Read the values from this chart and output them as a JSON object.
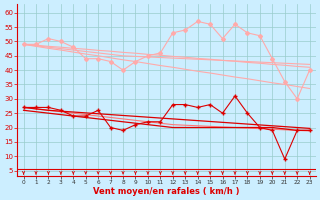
{
  "x": [
    0,
    1,
    2,
    3,
    4,
    5,
    6,
    7,
    8,
    9,
    10,
    11,
    12,
    13,
    14,
    15,
    16,
    17,
    18,
    19,
    20,
    21,
    22,
    23
  ],
  "rafales_line": [
    49,
    49,
    51,
    50,
    48,
    44,
    44,
    43,
    40,
    43,
    45,
    46,
    53,
    54,
    57,
    56,
    51,
    56,
    53,
    52,
    44,
    36,
    30,
    40
  ],
  "rafales_trend1": [
    49,
    48.3,
    47.6,
    47.0,
    46.3,
    45.6,
    45.0,
    44.3,
    43.6,
    43.0,
    42.3,
    41.6,
    41.0,
    40.3,
    39.6,
    39.0,
    38.3,
    37.6,
    37.0,
    36.3,
    35.6,
    35.0,
    34.3,
    33.6
  ],
  "rafales_trend2": [
    49,
    48.5,
    48.0,
    47.5,
    47.0,
    46.5,
    46.0,
    45.5,
    45.0,
    44.8,
    44.6,
    44.4,
    44.2,
    44.0,
    43.8,
    43.6,
    43.4,
    43.2,
    43.0,
    42.8,
    42.6,
    42.4,
    42.2,
    42.0
  ],
  "rafales_trend3": [
    49,
    48.7,
    48.3,
    48.0,
    47.6,
    47.3,
    46.9,
    46.6,
    46.2,
    45.9,
    45.5,
    45.2,
    44.8,
    44.5,
    44.1,
    43.8,
    43.4,
    43.1,
    42.7,
    42.4,
    42.0,
    41.7,
    41.3,
    41.0
  ],
  "moyen_line": [
    27,
    27,
    27,
    26,
    24,
    24,
    26,
    20,
    19,
    21,
    22,
    22,
    28,
    28,
    27,
    28,
    25,
    31,
    25,
    20,
    19,
    9,
    19,
    19
  ],
  "moyen_trend1": [
    27,
    26.5,
    26.0,
    25.5,
    25.0,
    24.5,
    24.0,
    23.5,
    23.0,
    22.5,
    22.0,
    21.5,
    21.0,
    20.8,
    20.6,
    20.4,
    20.2,
    20.0,
    19.8,
    19.6,
    19.4,
    19.2,
    19.0,
    18.8
  ],
  "moyen_trend2": [
    27,
    26.5,
    26.0,
    25.7,
    25.4,
    25.1,
    24.8,
    24.5,
    24.2,
    23.9,
    23.6,
    23.3,
    23.0,
    22.7,
    22.4,
    22.1,
    21.8,
    21.5,
    21.2,
    20.9,
    20.6,
    20.3,
    20.0,
    19.7
  ],
  "moyen_trend3": [
    26,
    25.5,
    25.0,
    24.5,
    24.0,
    23.5,
    23.0,
    22.5,
    22.0,
    21.5,
    21.0,
    20.5,
    20.0,
    20.0,
    20.0,
    20.0,
    20.0,
    20.0,
    20.0,
    20.0,
    20.0,
    19.5,
    19.0,
    19.0
  ],
  "wind_dirs": [
    2,
    3,
    0,
    1,
    1,
    1,
    1,
    2,
    2,
    1,
    2,
    1,
    2,
    2,
    2,
    1,
    2,
    1,
    2,
    2,
    2,
    2,
    2,
    1
  ],
  "background_color": "#cceeff",
  "grid_color": "#99cccc",
  "color_light": "#ffaaaa",
  "color_medium": "#ff7777",
  "color_dark": "#dd0000",
  "xlabel": "Vent moyen/en rafales ( km/h )",
  "yticks": [
    5,
    10,
    15,
    20,
    25,
    30,
    35,
    40,
    45,
    50,
    55,
    60
  ],
  "xlim": [
    -0.5,
    23.5
  ],
  "ylim": [
    3,
    63
  ]
}
